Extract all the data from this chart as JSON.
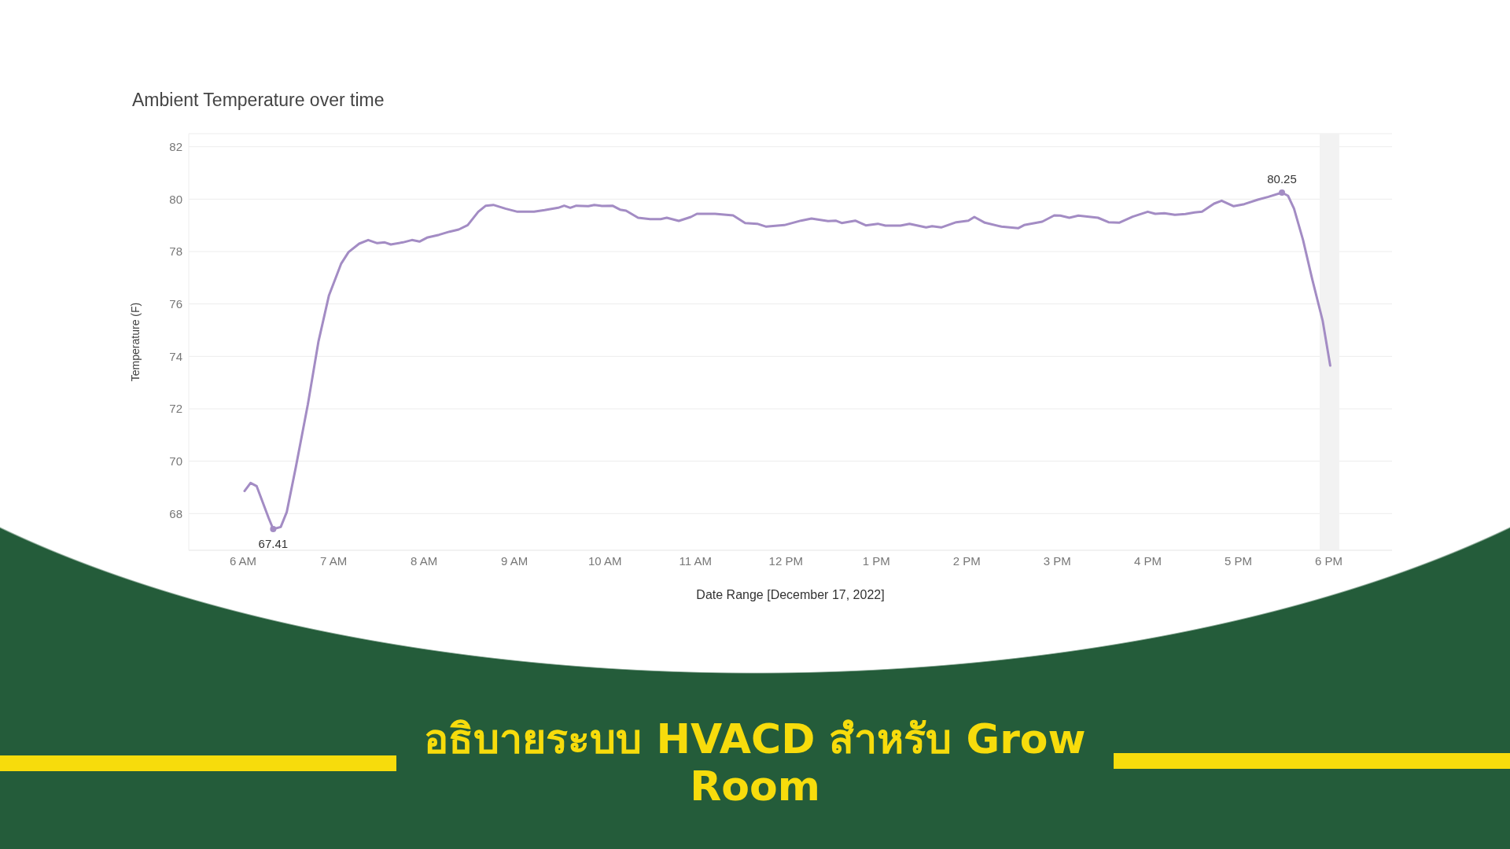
{
  "chart_data": {
    "type": "line",
    "title": "Ambient Temperature over time",
    "xlabel": "Date Range [December 17, 2022]",
    "ylabel": "Temperature (F)",
    "annotations": [
      "อธิบายระบบ HVACD สำหรับ Grow Room"
    ],
    "x": [
      "2022-12-17T06:01",
      "2022-12-17T06:05",
      "2022-12-17T06:09",
      "2022-12-17T06:17",
      "2022-12-17T06:20",
      "2022-12-17T06:25",
      "2022-12-17T06:29",
      "2022-12-17T06:35",
      "2022-12-17T06:43",
      "2022-12-17T06:50",
      "2022-12-17T06:57",
      "2022-12-17T07:05",
      "2022-12-17T07:10",
      "2022-12-17T07:17",
      "2022-12-17T07:23",
      "2022-12-17T07:29",
      "2022-12-17T07:34",
      "2022-12-17T07:38",
      "2022-12-17T07:46",
      "2022-12-17T07:52",
      "2022-12-17T07:57",
      "2022-12-17T08:02",
      "2022-12-17T08:10",
      "2022-12-17T08:17",
      "2022-12-17T08:23",
      "2022-12-17T08:29",
      "2022-12-17T08:36",
      "2022-12-17T08:41",
      "2022-12-17T08:46",
      "2022-12-17T08:54",
      "2022-12-17T09:02",
      "2022-12-17T09:13",
      "2022-12-17T09:20",
      "2022-12-17T09:29",
      "2022-12-17T09:33",
      "2022-12-17T09:37",
      "2022-12-17T09:41",
      "2022-12-17T09:49",
      "2022-12-17T09:53",
      "2022-12-17T09:58",
      "2022-12-17T10:05",
      "2022-12-17T10:10",
      "2022-12-17T10:14",
      "2022-12-17T10:22",
      "2022-12-17T10:30",
      "2022-12-17T10:37",
      "2022-12-17T10:41",
      "2022-12-17T10:49",
      "2022-12-17T10:57",
      "2022-12-17T11:01",
      "2022-12-17T11:13",
      "2022-12-17T11:25",
      "2022-12-17T11:33",
      "2022-12-17T11:41",
      "2022-12-17T11:47",
      "2022-12-17T11:59",
      "2022-12-17T12:10",
      "2022-12-17T12:17",
      "2022-12-17T12:28",
      "2022-12-17T12:33",
      "2022-12-17T12:37",
      "2022-12-17T12:46",
      "2022-12-17T12:53",
      "2022-12-17T13:01",
      "2022-12-17T13:06",
      "2022-12-17T13:16",
      "2022-12-17T13:22",
      "2022-12-17T13:33",
      "2022-12-17T13:37",
      "2022-12-17T13:43",
      "2022-12-17T13:53",
      "2022-12-17T14:01",
      "2022-12-17T14:05",
      "2022-12-17T14:12",
      "2022-12-17T14:23",
      "2022-12-17T14:34",
      "2022-12-17T14:38",
      "2022-12-17T14:50",
      "2022-12-17T14:58",
      "2022-12-17T15:02",
      "2022-12-17T15:08",
      "2022-12-17T15:14",
      "2022-12-17T15:27",
      "2022-12-17T15:34",
      "2022-12-17T15:41",
      "2022-12-17T15:50",
      "2022-12-17T16:00",
      "2022-12-17T16:05",
      "2022-12-17T16:11",
      "2022-12-17T16:18",
      "2022-12-17T16:25",
      "2022-12-17T16:31",
      "2022-12-17T16:36",
      "2022-12-17T16:44",
      "2022-12-17T16:49",
      "2022-12-17T16:57",
      "2022-12-17T17:04",
      "2022-12-17T17:13",
      "2022-12-17T17:20",
      "2022-12-17T17:29",
      "2022-12-17T17:33",
      "2022-12-17T17:37",
      "2022-12-17T17:43",
      "2022-12-17T17:49",
      "2022-12-17T17:56",
      "2022-12-17T18:01"
    ],
    "series": [
      {
        "color": "#a38cc4",
        "values": [
          68.86,
          69.17,
          69.05,
          67.83,
          67.41,
          67.49,
          68.06,
          69.77,
          72.17,
          74.56,
          76.33,
          77.53,
          77.98,
          78.3,
          78.44,
          78.32,
          78.35,
          78.27,
          78.35,
          78.44,
          78.38,
          78.53,
          78.64,
          78.76,
          78.84,
          79.01,
          79.52,
          79.75,
          79.78,
          79.64,
          79.52,
          79.52,
          79.58,
          79.67,
          79.75,
          79.67,
          79.75,
          79.73,
          79.78,
          79.74,
          79.75,
          79.6,
          79.56,
          79.29,
          79.24,
          79.24,
          79.29,
          79.17,
          79.32,
          79.44,
          79.44,
          79.38,
          79.09,
          79.06,
          78.95,
          79.01,
          79.18,
          79.26,
          79.16,
          79.18,
          79.09,
          79.18,
          79.0,
          79.06,
          78.99,
          78.99,
          79.06,
          78.92,
          78.97,
          78.92,
          79.12,
          79.18,
          79.32,
          79.1,
          78.95,
          78.89,
          79.01,
          79.14,
          79.38,
          79.37,
          79.29,
          79.37,
          79.29,
          79.12,
          79.1,
          79.33,
          79.52,
          79.44,
          79.46,
          79.4,
          79.43,
          79.49,
          79.52,
          79.83,
          79.94,
          79.73,
          79.81,
          79.98,
          80.09,
          80.25,
          80.13,
          79.64,
          78.44,
          76.96,
          75.36,
          73.65
        ],
        "value_labels": [
          null,
          null,
          null,
          null,
          "67.41",
          null,
          null,
          null,
          null,
          null,
          null,
          null,
          null,
          null,
          null,
          null,
          null,
          null,
          null,
          null,
          null,
          null,
          null,
          null,
          null,
          null,
          null,
          null,
          null,
          null,
          null,
          null,
          null,
          null,
          null,
          null,
          null,
          null,
          null,
          null,
          null,
          null,
          null,
          null,
          null,
          null,
          null,
          null,
          null,
          null,
          null,
          null,
          null,
          null,
          null,
          null,
          null,
          null,
          null,
          null,
          null,
          null,
          null,
          null,
          null,
          null,
          null,
          null,
          null,
          null,
          null,
          null,
          null,
          null,
          null,
          null,
          null,
          null,
          null,
          null,
          null,
          null,
          null,
          null,
          null,
          null,
          null,
          null,
          null,
          null,
          null,
          null,
          null,
          null,
          null,
          null,
          null,
          null,
          null,
          "80.25",
          null,
          null,
          null,
          null,
          null,
          null
        ]
      }
    ],
    "xlim": [
      "2022-12-17T05:24",
      "2022-12-17T18:42"
    ],
    "ylim": [
      66.6,
      82.5
    ],
    "xticks": [
      {
        "value": "2022-12-17T06:00",
        "label": "6 AM"
      },
      {
        "value": "2022-12-17T07:00",
        "label": "7 AM"
      },
      {
        "value": "2022-12-17T08:00",
        "label": "8 AM"
      },
      {
        "value": "2022-12-17T09:00",
        "label": "9 AM"
      },
      {
        "value": "2022-12-17T10:00",
        "label": "10 AM"
      },
      {
        "value": "2022-12-17T11:00",
        "label": "11 AM"
      },
      {
        "value": "2022-12-17T12:00",
        "label": "12 PM"
      },
      {
        "value": "2022-12-17T13:00",
        "label": "1 PM"
      },
      {
        "value": "2022-12-17T14:00",
        "label": "2 PM"
      },
      {
        "value": "2022-12-17T15:00",
        "label": "3 PM"
      },
      {
        "value": "2022-12-17T16:00",
        "label": "4 PM"
      },
      {
        "value": "2022-12-17T17:00",
        "label": "5 PM"
      },
      {
        "value": "2022-12-17T18:00",
        "label": "6 PM"
      }
    ],
    "yticks": [
      68,
      70,
      72,
      74,
      76,
      78,
      80,
      82
    ],
    "bands": [
      {
        "axis": "x",
        "from": "2022-12-17T17:54",
        "to": "2022-12-17T18:07",
        "color": "#f2f2f2"
      }
    ],
    "grid": "y",
    "marker": "none",
    "line_style": "solid"
  }
}
